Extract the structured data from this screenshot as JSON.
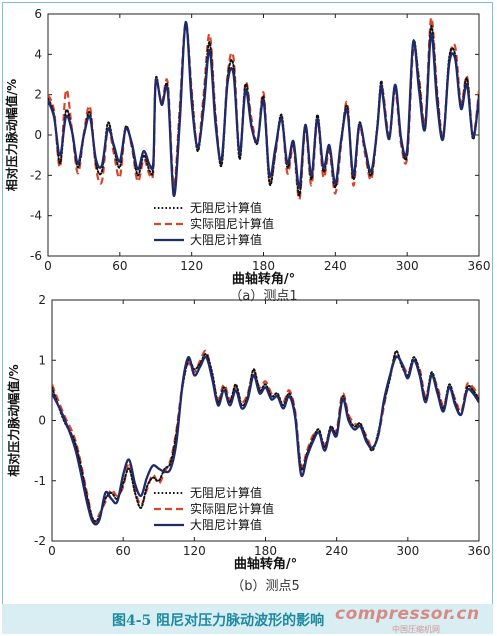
{
  "figure": {
    "caption": "图4-5 阻尼对压力脉动波形的影响",
    "watermark": "compressor.cn",
    "watermark_sub": "中国压缩机网"
  },
  "series_styles": [
    {
      "name": "无阻尼计算值",
      "color": "#111111",
      "dash": "dotted"
    },
    {
      "name": "实际阻尼计算值",
      "color": "#d9452b",
      "dash": "dashed"
    },
    {
      "name": "大阻尼计算值",
      "color": "#1f2a6b",
      "dash": "solid"
    }
  ],
  "chart_data": [
    {
      "type": "line",
      "subplot_label": "（a）测点1",
      "xlabel": "曲轴转角/°",
      "ylabel": "相对压力脉动幅值/%",
      "xlim": [
        0,
        360
      ],
      "ylim": [
        -6,
        6
      ],
      "xticks": [
        0,
        60,
        120,
        180,
        240,
        300,
        360
      ],
      "yticks": [
        -6,
        -4,
        -2,
        0,
        2,
        4,
        6
      ],
      "legend_position": "bottom-left",
      "series": [
        {
          "name": "无阻尼计算值",
          "x": [
            0,
            5,
            10,
            15,
            20,
            25,
            30,
            35,
            40,
            45,
            50,
            55,
            60,
            65,
            70,
            75,
            80,
            85,
            88,
            90,
            95,
            100,
            105,
            110,
            115,
            120,
            125,
            130,
            135,
            140,
            145,
            150,
            155,
            160,
            165,
            170,
            175,
            180,
            185,
            190,
            195,
            200,
            205,
            210,
            215,
            220,
            225,
            230,
            235,
            240,
            245,
            250,
            255,
            260,
            265,
            270,
            275,
            278,
            280,
            285,
            290,
            295,
            300,
            305,
            310,
            315,
            320,
            325,
            330,
            335,
            340,
            345,
            350,
            355,
            360
          ],
          "y": [
            1.8,
            1.0,
            -1.4,
            1.2,
            0.2,
            -1.6,
            0.0,
            1.1,
            -1.4,
            -1.8,
            0.6,
            -0.6,
            -1.6,
            0.4,
            -0.5,
            -2.0,
            -1.0,
            -1.8,
            -1.5,
            2.8,
            1.5,
            2.4,
            -2.8,
            1.0,
            5.5,
            2.0,
            -0.8,
            1.6,
            4.6,
            0.8,
            -1.5,
            2.8,
            3.4,
            -1.2,
            2.5,
            0.5,
            -0.4,
            1.9,
            -2.4,
            -0.8,
            1.0,
            -1.6,
            -0.4,
            -3.0,
            0.5,
            -2.2,
            1.0,
            -1.8,
            -0.6,
            -2.6,
            -0.2,
            1.4,
            -2.2,
            0.6,
            -0.8,
            -2.0,
            0.4,
            2.6,
            2.0,
            -0.2,
            2.4,
            -0.3,
            -0.9,
            4.6,
            2.6,
            0.4,
            5.4,
            2.0,
            -0.2,
            3.8,
            4.0,
            1.4,
            2.8,
            -0.2,
            2.0
          ]
        },
        {
          "name": "实际阻尼计算值",
          "x": [
            0,
            5,
            10,
            15,
            20,
            25,
            30,
            35,
            40,
            45,
            50,
            55,
            60,
            65,
            70,
            75,
            80,
            85,
            88,
            90,
            95,
            100,
            105,
            110,
            115,
            120,
            125,
            130,
            135,
            140,
            145,
            150,
            155,
            160,
            165,
            170,
            175,
            180,
            185,
            190,
            195,
            200,
            205,
            210,
            215,
            220,
            225,
            230,
            235,
            240,
            245,
            250,
            255,
            260,
            265,
            270,
            275,
            278,
            280,
            285,
            290,
            295,
            300,
            305,
            310,
            315,
            320,
            325,
            330,
            335,
            340,
            345,
            350,
            355,
            360
          ],
          "y": [
            2.0,
            1.2,
            -1.6,
            2.2,
            0.3,
            -1.9,
            0.1,
            1.4,
            -1.6,
            -2.3,
            0.3,
            -0.9,
            -2.1,
            0.4,
            -0.6,
            -2.3,
            -1.2,
            -2.0,
            -1.7,
            2.6,
            1.6,
            2.6,
            -2.5,
            1.3,
            5.6,
            2.2,
            -0.6,
            2.0,
            5.0,
            1.0,
            -1.4,
            3.0,
            3.8,
            -1.0,
            2.6,
            0.8,
            -0.3,
            2.1,
            -2.2,
            -0.9,
            0.9,
            -1.9,
            -0.6,
            -3.2,
            0.3,
            -2.5,
            0.7,
            -2.1,
            -0.8,
            -2.9,
            -0.4,
            1.6,
            -2.5,
            0.4,
            -1.0,
            -2.2,
            0.3,
            2.4,
            2.1,
            0.0,
            2.2,
            -0.5,
            -1.1,
            4.2,
            2.8,
            0.6,
            5.8,
            2.2,
            0.0,
            3.6,
            4.4,
            1.6,
            2.9,
            0.0,
            2.2
          ]
        },
        {
          "name": "大阻尼计算值",
          "x": [
            0,
            5,
            10,
            15,
            20,
            25,
            30,
            35,
            40,
            45,
            50,
            55,
            60,
            65,
            70,
            75,
            80,
            85,
            88,
            90,
            95,
            100,
            105,
            110,
            115,
            120,
            125,
            130,
            135,
            140,
            145,
            150,
            155,
            160,
            165,
            170,
            175,
            180,
            185,
            190,
            195,
            200,
            205,
            210,
            215,
            220,
            225,
            230,
            235,
            240,
            245,
            250,
            255,
            260,
            265,
            270,
            275,
            278,
            280,
            285,
            290,
            295,
            300,
            305,
            310,
            315,
            320,
            325,
            330,
            335,
            340,
            345,
            350,
            355,
            360
          ],
          "y": [
            1.7,
            0.9,
            -1.0,
            0.9,
            0.2,
            -1.4,
            0.0,
            0.9,
            -1.2,
            -1.5,
            0.3,
            -0.5,
            -1.3,
            0.3,
            -0.4,
            -1.7,
            -0.8,
            -1.5,
            -1.3,
            2.7,
            1.5,
            2.2,
            -3.0,
            0.6,
            5.6,
            1.6,
            -0.6,
            1.3,
            4.2,
            0.5,
            -1.2,
            2.6,
            3.0,
            -0.9,
            2.2,
            0.4,
            -0.3,
            1.7,
            -2.0,
            -0.6,
            0.8,
            -1.4,
            -0.3,
            -2.6,
            0.5,
            -2.0,
            0.8,
            -1.6,
            -0.5,
            -2.4,
            -0.2,
            1.2,
            -2.0,
            0.5,
            -0.7,
            -1.8,
            0.3,
            2.4,
            1.8,
            -0.2,
            2.5,
            -0.2,
            -0.7,
            4.6,
            2.2,
            0.3,
            5.0,
            1.6,
            -0.2,
            3.5,
            3.8,
            1.3,
            2.5,
            -0.1,
            1.9
          ]
        }
      ]
    },
    {
      "type": "line",
      "subplot_label": "（b）测点5",
      "xlabel": "曲轴转角/°",
      "ylabel": "相对压力脉动幅值/%",
      "xlim": [
        0,
        360
      ],
      "ylim": [
        -2,
        2
      ],
      "xticks": [
        0,
        60,
        120,
        180,
        240,
        300,
        360
      ],
      "yticks": [
        -2,
        -1,
        0,
        1,
        2
      ],
      "legend_position": "bottom-right",
      "series": [
        {
          "name": "无阻尼计算值",
          "x": [
            0,
            10,
            20,
            30,
            35,
            40,
            45,
            50,
            55,
            60,
            65,
            70,
            75,
            80,
            85,
            90,
            95,
            100,
            105,
            110,
            115,
            120,
            125,
            130,
            135,
            140,
            145,
            150,
            155,
            160,
            165,
            170,
            175,
            180,
            185,
            190,
            195,
            200,
            205,
            210,
            215,
            220,
            225,
            230,
            235,
            240,
            245,
            250,
            255,
            260,
            265,
            270,
            275,
            280,
            285,
            290,
            295,
            300,
            305,
            310,
            315,
            320,
            325,
            330,
            335,
            340,
            345,
            350,
            355,
            360
          ],
          "y": [
            0.55,
            0.0,
            -0.4,
            -1.3,
            -1.65,
            -1.6,
            -1.3,
            -1.2,
            -1.3,
            -1.05,
            -0.8,
            -1.2,
            -1.45,
            -1.1,
            -0.95,
            -1.0,
            -0.8,
            -0.7,
            -0.2,
            0.55,
            1.0,
            0.85,
            0.95,
            1.1,
            0.8,
            0.3,
            0.55,
            0.3,
            0.6,
            0.25,
            0.4,
            0.85,
            0.5,
            0.6,
            0.4,
            0.45,
            0.25,
            0.45,
            0.1,
            -0.8,
            -0.55,
            -0.3,
            -0.15,
            -0.45,
            -0.1,
            -0.2,
            0.4,
            0.05,
            -0.1,
            -0.05,
            -0.3,
            -0.5,
            -0.2,
            0.3,
            0.7,
            1.15,
            0.9,
            0.75,
            1.05,
            0.8,
            0.35,
            0.8,
            0.5,
            0.2,
            0.6,
            0.3,
            0.1,
            0.55,
            0.5,
            0.35
          ]
        },
        {
          "name": "实际阻尼计算值",
          "x": [
            0,
            10,
            20,
            30,
            35,
            40,
            45,
            50,
            55,
            60,
            65,
            70,
            75,
            80,
            85,
            90,
            95,
            100,
            105,
            110,
            115,
            120,
            125,
            130,
            135,
            140,
            145,
            150,
            155,
            160,
            165,
            170,
            175,
            180,
            185,
            190,
            195,
            200,
            205,
            210,
            215,
            220,
            225,
            230,
            235,
            240,
            245,
            250,
            255,
            260,
            265,
            270,
            275,
            280,
            285,
            290,
            295,
            300,
            305,
            310,
            315,
            320,
            325,
            330,
            335,
            340,
            345,
            350,
            355,
            360
          ],
          "y": [
            0.6,
            0.1,
            -0.35,
            -1.25,
            -1.7,
            -1.55,
            -1.35,
            -1.15,
            -1.25,
            -1.1,
            -0.7,
            -1.15,
            -1.4,
            -1.15,
            -0.9,
            -1.05,
            -0.85,
            -0.65,
            -0.15,
            0.6,
            0.95,
            0.8,
            1.0,
            1.15,
            0.75,
            0.35,
            0.6,
            0.35,
            0.55,
            0.3,
            0.45,
            0.8,
            0.55,
            0.65,
            0.45,
            0.4,
            0.3,
            0.5,
            0.15,
            -0.75,
            -0.5,
            -0.25,
            -0.2,
            -0.4,
            -0.15,
            -0.15,
            0.45,
            0.1,
            -0.05,
            -0.1,
            -0.25,
            -0.45,
            -0.25,
            0.25,
            0.75,
            1.1,
            0.95,
            0.8,
            1.0,
            0.85,
            0.4,
            0.75,
            0.55,
            0.25,
            0.55,
            0.35,
            0.15,
            0.6,
            0.55,
            0.4
          ]
        },
        {
          "name": "大阻尼计算值",
          "x": [
            0,
            10,
            20,
            30,
            35,
            40,
            45,
            50,
            55,
            60,
            65,
            70,
            75,
            80,
            85,
            90,
            95,
            100,
            105,
            110,
            115,
            120,
            125,
            130,
            135,
            140,
            145,
            150,
            155,
            160,
            165,
            170,
            175,
            180,
            185,
            190,
            195,
            200,
            205,
            210,
            215,
            220,
            225,
            230,
            235,
            240,
            245,
            250,
            255,
            260,
            265,
            270,
            275,
            280,
            285,
            290,
            295,
            300,
            305,
            310,
            315,
            320,
            325,
            330,
            335,
            340,
            345,
            350,
            355,
            360
          ],
          "y": [
            0.45,
            0.05,
            -0.5,
            -1.4,
            -1.7,
            -1.65,
            -1.2,
            -1.3,
            -1.35,
            -0.9,
            -0.65,
            -1.05,
            -1.25,
            -0.95,
            -0.75,
            -0.8,
            -0.85,
            -0.8,
            -0.35,
            0.6,
            1.05,
            0.75,
            0.9,
            1.05,
            0.7,
            0.25,
            0.5,
            0.25,
            0.5,
            0.2,
            0.35,
            0.75,
            0.45,
            0.55,
            0.35,
            0.4,
            0.2,
            0.4,
            0.05,
            -0.9,
            -0.6,
            -0.35,
            -0.2,
            -0.5,
            -0.15,
            -0.25,
            0.35,
            0.0,
            -0.15,
            -0.1,
            -0.35,
            -0.45,
            -0.25,
            0.35,
            0.75,
            1.05,
            0.95,
            0.7,
            1.0,
            0.75,
            0.3,
            0.75,
            0.45,
            0.15,
            0.55,
            0.25,
            0.1,
            0.5,
            0.45,
            0.3
          ]
        }
      ]
    }
  ]
}
